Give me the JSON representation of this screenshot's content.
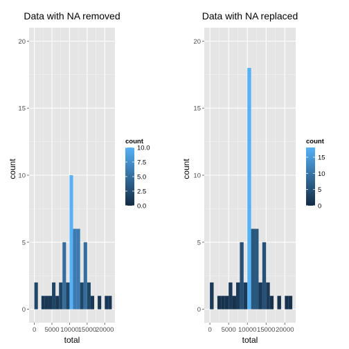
{
  "chart_data": [
    {
      "type": "bar",
      "title": "Data with NA removed",
      "xlabel": "total",
      "ylabel": "count",
      "xlim": [
        -1500,
        22900
      ],
      "ylim": [
        -1,
        21
      ],
      "xticks": [
        0,
        5000,
        10000,
        15000,
        20000
      ],
      "xtick_labels": [
        "0",
        "5000",
        "10000",
        "15000",
        "20000"
      ],
      "yticks": [
        0,
        5,
        10,
        15,
        20
      ],
      "ytick_labels": [
        "0",
        "5",
        "10",
        "15",
        "20"
      ],
      "binwidth": 1000,
      "bins": [
        {
          "start": 0,
          "count": 2
        },
        {
          "start": 2000,
          "count": 1
        },
        {
          "start": 3000,
          "count": 1
        },
        {
          "start": 4000,
          "count": 1
        },
        {
          "start": 5000,
          "count": 2
        },
        {
          "start": 6000,
          "count": 1
        },
        {
          "start": 7000,
          "count": 2
        },
        {
          "start": 8000,
          "count": 5
        },
        {
          "start": 9000,
          "count": 2
        },
        {
          "start": 10000,
          "count": 10
        },
        {
          "start": 11000,
          "count": 6
        },
        {
          "start": 12000,
          "count": 6
        },
        {
          "start": 13000,
          "count": 2
        },
        {
          "start": 14000,
          "count": 5
        },
        {
          "start": 15000,
          "count": 2
        },
        {
          "start": 16000,
          "count": 1
        },
        {
          "start": 18000,
          "count": 1
        },
        {
          "start": 20000,
          "count": 1
        },
        {
          "start": 21000,
          "count": 1
        }
      ],
      "legend": {
        "title": "count",
        "min": 0,
        "max": 10,
        "breaks": [
          10,
          7.5,
          5,
          2.5,
          0
        ],
        "break_labels": [
          "10.0",
          "7.5",
          "5.0",
          "2.5",
          "0.0"
        ],
        "placement": "right"
      },
      "color_low": "#132b43",
      "color_high": "#56b1f7",
      "grid": true
    },
    {
      "type": "bar",
      "title": "Data with NA replaced",
      "xlabel": "total",
      "ylabel": "count",
      "xlim": [
        -1500,
        22900
      ],
      "ylim": [
        -1,
        21
      ],
      "xticks": [
        0,
        5000,
        10000,
        15000,
        20000
      ],
      "xtick_labels": [
        "0",
        "5000",
        "10000",
        "15000",
        "20000"
      ],
      "yticks": [
        0,
        5,
        10,
        15,
        20
      ],
      "ytick_labels": [
        "0",
        "5",
        "10",
        "15",
        "20"
      ],
      "binwidth": 1000,
      "bins": [
        {
          "start": 0,
          "count": 2
        },
        {
          "start": 2000,
          "count": 1
        },
        {
          "start": 3000,
          "count": 1
        },
        {
          "start": 4000,
          "count": 1
        },
        {
          "start": 5000,
          "count": 2
        },
        {
          "start": 6000,
          "count": 1
        },
        {
          "start": 7000,
          "count": 2
        },
        {
          "start": 8000,
          "count": 5
        },
        {
          "start": 9000,
          "count": 2
        },
        {
          "start": 10000,
          "count": 18
        },
        {
          "start": 11000,
          "count": 6
        },
        {
          "start": 12000,
          "count": 6
        },
        {
          "start": 13000,
          "count": 2
        },
        {
          "start": 14000,
          "count": 5
        },
        {
          "start": 15000,
          "count": 2
        },
        {
          "start": 16000,
          "count": 1
        },
        {
          "start": 18000,
          "count": 1
        },
        {
          "start": 20000,
          "count": 1
        },
        {
          "start": 21000,
          "count": 1
        }
      ],
      "legend": {
        "title": "count",
        "min": 0,
        "max": 18,
        "breaks": [
          15,
          10,
          5,
          0
        ],
        "break_labels": [
          "15",
          "10",
          "5",
          "0"
        ],
        "placement": "right"
      },
      "color_low": "#132b43",
      "color_high": "#56b1f7",
      "grid": true
    }
  ]
}
